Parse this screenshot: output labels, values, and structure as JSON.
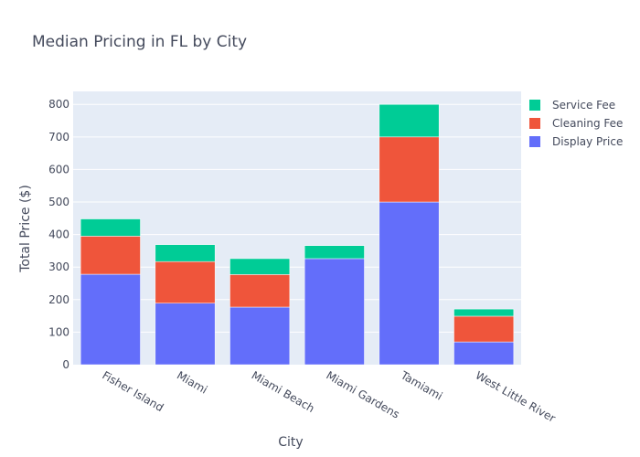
{
  "chart_data": {
    "type": "bar",
    "stacked": true,
    "title": "Median Pricing in FL by City",
    "xlabel": "City",
    "ylabel": "Total Price ($)",
    "ylim": [
      0,
      840
    ],
    "yticks": [
      0,
      100,
      200,
      300,
      400,
      500,
      600,
      700,
      800
    ],
    "categories": [
      "Fisher Island",
      "Miami",
      "Miami Beach",
      "Miami Gardens",
      "Tamiami",
      "West Little River"
    ],
    "series": [
      {
        "name": "Display Price",
        "color": "#636efa",
        "values": [
          278,
          189,
          177,
          326,
          500,
          70
        ]
      },
      {
        "name": "Cleaning Fee",
        "color": "#ef553b",
        "values": [
          117,
          128,
          100,
          0,
          200,
          79
        ]
      },
      {
        "name": "Service Fee",
        "color": "#00cc96",
        "values": [
          53,
          52,
          49,
          40,
          100,
          22
        ]
      }
    ],
    "legend": {
      "position": "top-right",
      "order": [
        "Service Fee",
        "Cleaning Fee",
        "Display Price"
      ]
    },
    "grid": true,
    "plot_background": "#e5ecf6"
  }
}
